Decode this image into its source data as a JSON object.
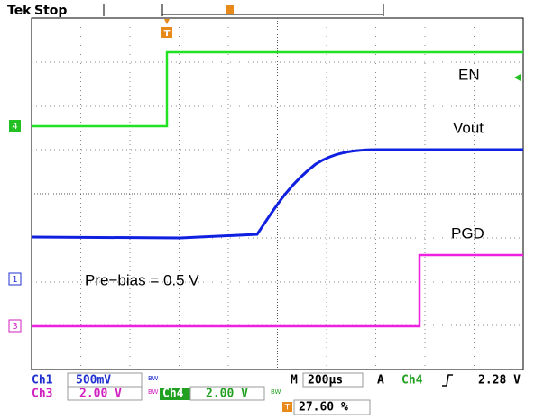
{
  "header": {
    "brand": "Tek",
    "status": "Stop"
  },
  "trigger_marker": "T",
  "traces": [
    {
      "label": "EN",
      "marker": "4"
    },
    {
      "label": "Vout"
    },
    {
      "label": "PGD",
      "marker": "3"
    }
  ],
  "ch1_marker": "1",
  "annotation": "Pre−bias = 0.5 V",
  "readout": {
    "row1": {
      "channel": "Ch1",
      "scale": "500mV",
      "bw": "BW",
      "m": "M",
      "timebase": "200µs",
      "a": "A",
      "trig_channel": "Ch4",
      "trig_level": "2.28 V"
    },
    "row2": {
      "channel": "Ch3",
      "scale": "2.00 V",
      "bw": "BW",
      "channel2": "Ch4",
      "scale2": "2.00 V",
      "bw2": "BW"
    },
    "row3": {
      "icon": "T",
      "position": "27.60 %"
    }
  }
}
